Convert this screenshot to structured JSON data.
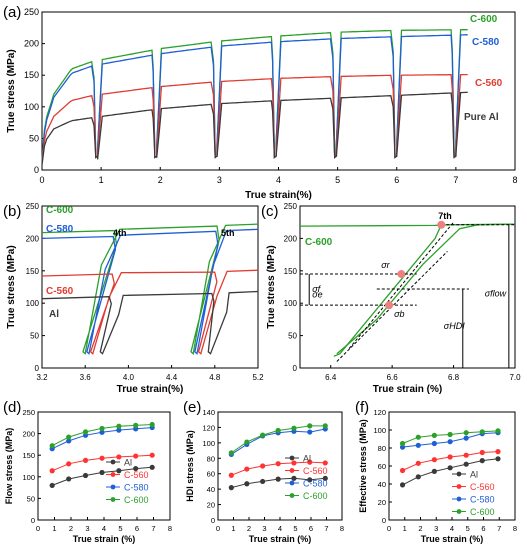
{
  "chart_data": [
    {
      "panel": "(a)",
      "type": "line",
      "xlabel": "True strain(%)",
      "ylabel": "True stress (MPa)",
      "xlim": [
        0,
        8
      ],
      "ylim": [
        0,
        250
      ],
      "xticks": [
        "0",
        "1",
        "2",
        "3",
        "4",
        "5",
        "6",
        "7",
        "8"
      ],
      "yticks": [
        "0",
        "50",
        "100",
        "150",
        "200",
        "250"
      ],
      "legend": [
        "C-600",
        "C-580",
        "C-560",
        "Pure Al"
      ],
      "unload_points": [
        0.86,
        1.86,
        2.88,
        3.88,
        4.9,
        5.92,
        6.92
      ],
      "series": [
        {
          "name": "C-600",
          "color": "#2ca02c",
          "s": [
            0,
            0.05,
            0.2,
            0.5,
            0.86,
            2,
            3,
            4,
            5,
            6,
            7.2
          ],
          "y": [
            15,
            75,
            120,
            160,
            172,
            192,
            204,
            212,
            218,
            221,
            222
          ]
        },
        {
          "name": "C-580",
          "color": "#1f5fd6",
          "s": [
            0,
            0.05,
            0.2,
            0.5,
            0.86,
            2,
            3,
            4,
            5,
            6,
            7.2
          ],
          "y": [
            12,
            70,
            115,
            153,
            165,
            184,
            196,
            203,
            208,
            211,
            214
          ]
        },
        {
          "name": "C-560",
          "color": "#e03c31",
          "s": [
            0,
            0.05,
            0.2,
            0.5,
            0.86,
            2,
            3,
            4,
            5,
            6,
            7.2
          ],
          "y": [
            10,
            55,
            85,
            110,
            118,
            132,
            140,
            145,
            148,
            150,
            151
          ]
        },
        {
          "name": "Pure Al",
          "color": "#3a3a3a",
          "s": [
            0,
            0.05,
            0.2,
            0.5,
            0.86,
            2,
            3,
            4,
            5,
            6,
            7.2
          ],
          "y": [
            8,
            45,
            65,
            78,
            83,
            97,
            105,
            110,
            114,
            118,
            123
          ]
        }
      ]
    },
    {
      "panel": "(b)",
      "type": "line",
      "xlabel": "True strain(%)",
      "ylabel": "True stress (MPa)",
      "xlim": [
        3.2,
        5.2
      ],
      "ylim": [
        0,
        250
      ],
      "xticks": [
        "3.2",
        "3.6",
        "4.0",
        "4.4",
        "4.8",
        "5.2"
      ],
      "yticks": [
        "0",
        "50",
        "100",
        "150",
        "200",
        "250"
      ],
      "annotations": [
        "4th",
        "5th"
      ],
      "legend": [
        "C-600",
        "C-580",
        "C-560",
        "Al"
      ],
      "series": [
        {
          "name": "C-600",
          "color": "#2ca02c",
          "level4": 212,
          "level5": 219
        },
        {
          "name": "C-580",
          "color": "#1f5fd6",
          "level4": 203,
          "level5": 211
        },
        {
          "name": "C-560",
          "color": "#e03c31",
          "level4": 145,
          "level5": 148
        },
        {
          "name": "Al",
          "color": "#3a3a3a",
          "level4": 110,
          "level5": 115
        }
      ]
    },
    {
      "panel": "(c)",
      "type": "line",
      "xlabel": "True strain (%)",
      "ylabel": "True stress (MPa)",
      "xlim": [
        6.3,
        7.0
      ],
      "ylim": [
        0,
        250
      ],
      "xticks": [
        "6.4",
        "6.6",
        "6.8",
        "7.0"
      ],
      "yticks": [
        "0",
        "50",
        "100",
        "150",
        "200",
        "250"
      ],
      "legend": [
        "C-600"
      ],
      "annotations": [
        "7th",
        "σr",
        "σf",
        "σb",
        "σflow",
        "σHDI",
        "σe"
      ],
      "points": [
        {
          "x": 6.76,
          "y": 221
        },
        {
          "x": 6.63,
          "y": 145
        },
        {
          "x": 6.59,
          "y": 97
        }
      ],
      "levels": {
        "sigma_r": 145,
        "sigma_mid": 122,
        "sigma_b": 97,
        "sigma_peak": 221
      }
    },
    {
      "panel": "(d)",
      "type": "line",
      "xlabel": "True strain (%)",
      "ylabel": "Flow stress (MPa)",
      "xlim": [
        0,
        8
      ],
      "ylim": [
        0,
        250
      ],
      "xticks": [
        "0",
        "1",
        "2",
        "3",
        "4",
        "5",
        "6",
        "7",
        "8"
      ],
      "yticks": [
        "0",
        "50",
        "100",
        "150",
        "200",
        "250"
      ],
      "x": [
        0.86,
        1.86,
        2.88,
        3.88,
        4.9,
        5.92,
        6.92
      ],
      "series": [
        {
          "name": "Al",
          "color": "#3a3a3a",
          "values": [
            80,
            95,
            103,
            110,
            114,
            119,
            122
          ]
        },
        {
          "name": "C-560",
          "color": "#ff3333",
          "values": [
            114,
            130,
            138,
            143,
            146,
            148,
            150
          ]
        },
        {
          "name": "C-580",
          "color": "#1f5fd6",
          "values": [
            165,
            183,
            196,
            203,
            208,
            211,
            214
          ]
        },
        {
          "name": "C-600",
          "color": "#2ca02c",
          "values": [
            172,
            192,
            204,
            212,
            217,
            219,
            221
          ]
        }
      ]
    },
    {
      "panel": "(e)",
      "type": "line",
      "xlabel": "True strain (%)",
      "ylabel": "HDI stress (MPa)",
      "xlim": [
        0,
        8
      ],
      "ylim": [
        0,
        140
      ],
      "xticks": [
        "0",
        "1",
        "2",
        "3",
        "4",
        "5",
        "6",
        "7",
        "8"
      ],
      "yticks": [
        "0",
        "20",
        "40",
        "60",
        "80",
        "100",
        "120",
        "140"
      ],
      "x": [
        0.86,
        1.86,
        2.88,
        3.88,
        4.9,
        5.92,
        6.92
      ],
      "series": [
        {
          "name": "Al",
          "color": "#3a3a3a",
          "values": [
            42,
            47,
            50,
            53,
            54,
            52,
            54
          ]
        },
        {
          "name": "C-560",
          "color": "#ff3333",
          "values": [
            58,
            66,
            70,
            73,
            74,
            75,
            74
          ]
        },
        {
          "name": "C-580",
          "color": "#1f5fd6",
          "values": [
            85,
            98,
            109,
            113,
            115,
            114,
            118
          ]
        },
        {
          "name": "C-600",
          "color": "#2ca02c",
          "values": [
            87,
            101,
            110,
            116,
            119,
            122,
            122
          ]
        }
      ]
    },
    {
      "panel": "(f)",
      "type": "line",
      "xlabel": "True strain (%)",
      "ylabel": "Effective stress (MPa)",
      "xlim": [
        0,
        8
      ],
      "ylim": [
        0,
        120
      ],
      "xticks": [
        "0",
        "1",
        "2",
        "3",
        "4",
        "5",
        "6",
        "7",
        "8"
      ],
      "yticks": [
        "0",
        "20",
        "40",
        "60",
        "80",
        "100",
        "120"
      ],
      "x": [
        0.86,
        1.86,
        2.88,
        3.88,
        4.9,
        5.92,
        6.92
      ],
      "series": [
        {
          "name": "Al",
          "color": "#3a3a3a",
          "values": [
            39,
            48,
            54,
            58,
            62,
            66,
            68
          ]
        },
        {
          "name": "C-560",
          "color": "#ff3333",
          "values": [
            55,
            63,
            67,
            70,
            72,
            75,
            76
          ]
        },
        {
          "name": "C-580",
          "color": "#1f5fd6",
          "values": [
            81,
            83,
            85,
            87,
            91,
            96,
            97
          ]
        },
        {
          "name": "C-600",
          "color": "#2ca02c",
          "values": [
            85,
            92,
            94,
            95,
            97,
            98,
            99
          ]
        }
      ]
    }
  ]
}
